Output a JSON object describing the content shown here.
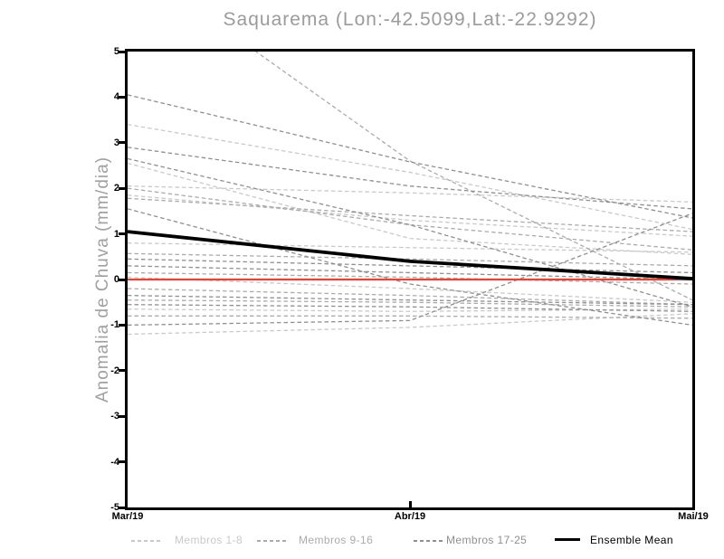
{
  "chart_data": {
    "type": "line",
    "title": "Saquarema (Lon:-42.5099,Lat:-22.9292)",
    "ylabel": "Anomalia de Chuva (mm/dia)",
    "x_categories": [
      "Mar/19",
      "Abr/19",
      "Mai/19"
    ],
    "ylim": [
      -5,
      5
    ],
    "yticks": [
      5,
      4,
      3,
      2,
      1,
      0,
      -1,
      -2,
      -3,
      -4,
      -5
    ],
    "grid": false,
    "legend_position": "bottom",
    "zero_line": {
      "value": 0,
      "color": "#ee4135"
    },
    "series": [
      {
        "name": "Membros 1-8",
        "color": "#c9c9c9",
        "style": "dashed",
        "lines": [
          [
            3.4,
            2.35,
            1.1
          ],
          [
            2.55,
            0.9,
            0.55
          ],
          [
            2.05,
            1.9,
            1.7
          ],
          [
            1.85,
            1.3,
            0.95
          ],
          [
            0.8,
            0.7,
            0.6
          ],
          [
            0.05,
            -0.2,
            -0.5
          ],
          [
            -0.65,
            -0.7,
            -0.65
          ],
          [
            -1.2,
            -1.05,
            -0.75
          ]
        ]
      },
      {
        "name": "Membros 9-16",
        "color": "#ababab",
        "style": "dashed",
        "lines": [
          [
            7.0,
            2.6,
            -0.45
          ],
          [
            2.0,
            1.2,
            0.65
          ],
          [
            1.78,
            1.4,
            1.05
          ],
          [
            0.57,
            0.45,
            0.3
          ],
          [
            0.15,
            0.05,
            -0.1
          ],
          [
            -0.2,
            -0.35,
            -0.55
          ],
          [
            -0.45,
            -0.5,
            -0.6
          ],
          [
            -0.8,
            -0.8,
            -0.85
          ]
        ]
      },
      {
        "name": "Membros 17-25",
        "color": "#8f8f8f",
        "style": "dashed",
        "lines": [
          [
            4.05,
            2.58,
            1.35
          ],
          [
            2.9,
            2.05,
            1.55
          ],
          [
            2.65,
            1.2,
            -0.6
          ],
          [
            1.55,
            -0.1,
            -1.0
          ],
          [
            0.45,
            0.3,
            0.15
          ],
          [
            0.3,
            0.15,
            0.0
          ],
          [
            -0.35,
            -0.45,
            -0.55
          ],
          [
            -0.55,
            -0.6,
            -0.7
          ],
          [
            -1.0,
            -0.9,
            1.45
          ]
        ]
      },
      {
        "name": "Ensemble Mean",
        "color": "#000000",
        "style": "solid",
        "lines": [
          [
            1.05,
            0.4,
            0.02
          ]
        ]
      }
    ]
  }
}
